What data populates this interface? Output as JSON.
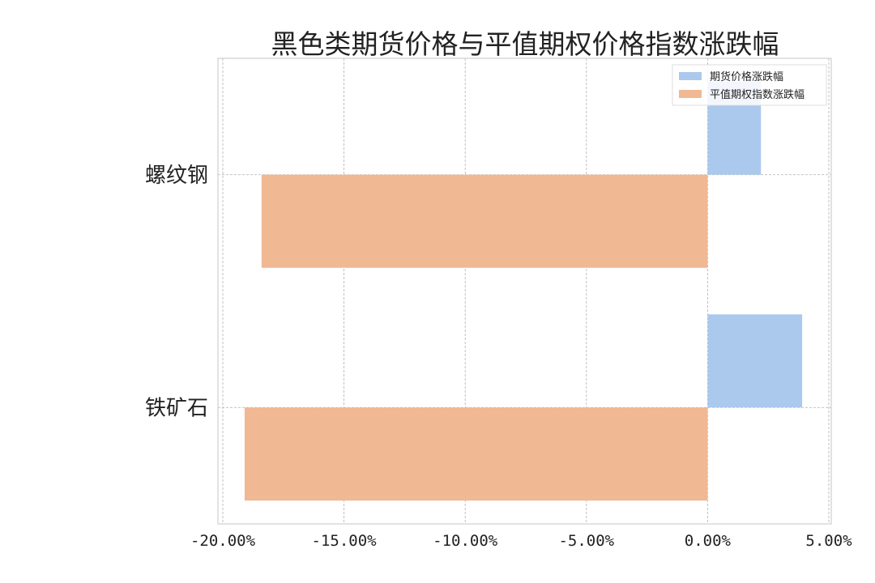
{
  "chart_data": {
    "type": "bar",
    "orientation": "horizontal",
    "title": "黑色类期货价格与平值期权价格指数涨跌幅",
    "categories": [
      "螺纹钢",
      "铁矿石"
    ],
    "series": [
      {
        "name": "期货价格涨跌幅",
        "values": [
          2.2,
          3.9
        ],
        "color": "#abc9ed"
      },
      {
        "name": "平值期权指数涨跌幅",
        "values": [
          -18.4,
          -19.1
        ],
        "color": "#f0b893"
      }
    ],
    "xlim": [
      -20.2,
      5.1
    ],
    "xticks": [
      -20,
      -15,
      -10,
      -5,
      0,
      5
    ],
    "xtick_labels": [
      "-20.00%",
      "-15.00%",
      "-10.00%",
      "-5.00%",
      "0.00%",
      "5.00%"
    ],
    "grid": true,
    "legend_position": "top-right"
  }
}
